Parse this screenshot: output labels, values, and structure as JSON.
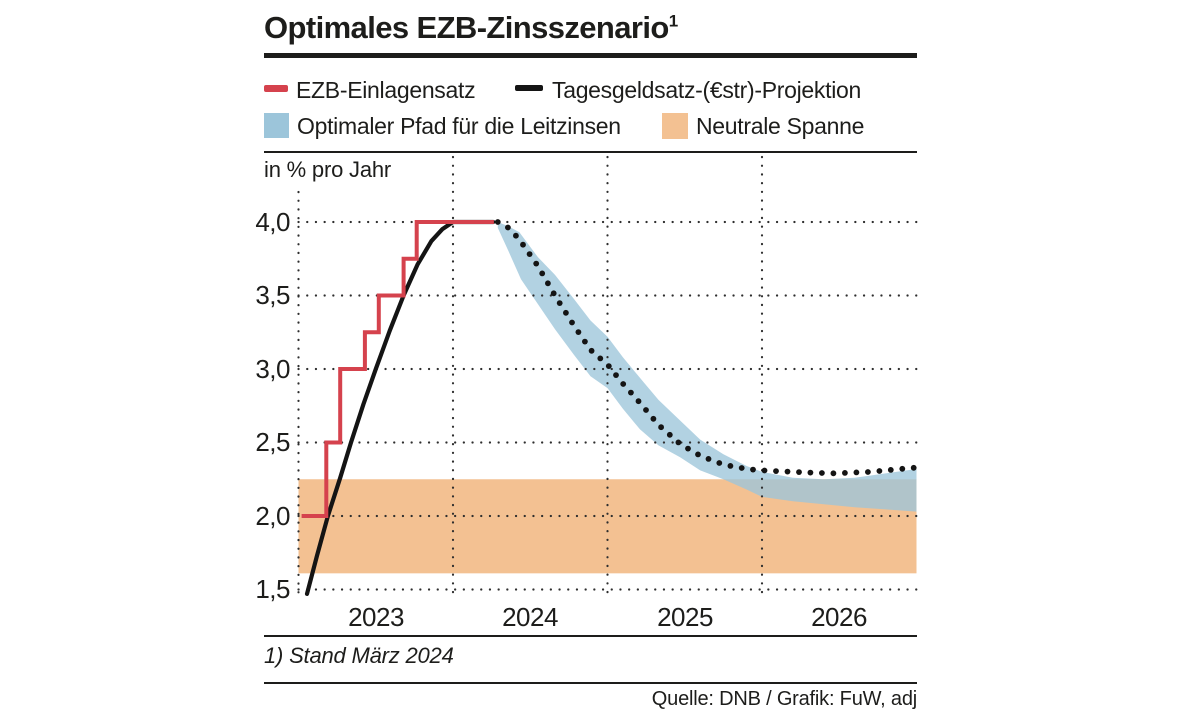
{
  "title": "Optimales EZB-Zinsszenario",
  "title_superscript": "1",
  "axis_note": "in % pro Jahr",
  "footnote": "1) Stand März 2024",
  "source": "Quelle: DNB / Grafik: FuW, adj",
  "colors": {
    "red": "#d5424d",
    "black_line": "#141414",
    "blue_band": "#9cc5da",
    "orange_band": "#f3c192",
    "grid_dot": "#2e2e2e",
    "text": "#1d1d1b"
  },
  "legend": [
    {
      "label": "EZB-Einlagensatz",
      "swatch": "dash",
      "color": "#d5424d"
    },
    {
      "label": "Tagesgeldsatz-(€str)-Projektion",
      "swatch": "dash",
      "color": "#141414"
    },
    {
      "label": "Optimaler Pfad für die Leitzinsen",
      "swatch": "square",
      "color": "#9cc5da"
    },
    {
      "label": "Neutrale Spanne",
      "swatch": "square",
      "color": "#f3c192"
    }
  ],
  "chart_data": {
    "type": "line",
    "title": "Optimales EZB-Zinsszenario (Stand März 2024)",
    "ylabel": "in % pro Jahr",
    "xlim": [
      2023.0,
      2027.0
    ],
    "ylim": [
      1.5,
      4.0
    ],
    "grid": {
      "style": "dotted",
      "h_values": [
        4.0,
        3.5,
        3.0,
        2.5,
        2.0,
        1.5
      ],
      "v_values": [
        2023.0,
        2024.0,
        2025.0,
        2026.0
      ]
    },
    "y_ticks": {
      "values": [
        4.0,
        3.5,
        3.0,
        2.5,
        2.0,
        1.5
      ],
      "labels": [
        "4,0",
        "3,5",
        "3,0",
        "2,5",
        "2,0",
        "1,5"
      ]
    },
    "x_ticks": {
      "values": [
        2023.5,
        2024.5,
        2025.5,
        2026.5
      ],
      "labels": [
        "2023",
        "2024",
        "2025",
        "2026"
      ]
    },
    "series": [
      {
        "name": "Neutrale Spanne",
        "type": "hband",
        "color": "#f3c192",
        "x": [
          2023.0,
          2027.0
        ],
        "range": [
          1.61,
          2.25
        ]
      },
      {
        "name": "Optimaler Pfad für die Leitzinsen",
        "type": "band",
        "color": "#9cc5da",
        "opacity": 0.78,
        "top": [
          [
            2024.29,
            4.0
          ],
          [
            2024.36,
            3.97
          ],
          [
            2024.43,
            3.93
          ],
          [
            2024.55,
            3.76
          ],
          [
            2024.66,
            3.64
          ],
          [
            2024.78,
            3.48
          ],
          [
            2024.89,
            3.33
          ],
          [
            2025.0,
            3.22
          ],
          [
            2025.1,
            3.08
          ],
          [
            2025.21,
            2.94
          ],
          [
            2025.33,
            2.79
          ],
          [
            2025.47,
            2.65
          ],
          [
            2025.6,
            2.52
          ],
          [
            2025.75,
            2.42
          ],
          [
            2025.9,
            2.34
          ],
          [
            2026.0,
            2.3
          ],
          [
            2026.2,
            2.26
          ],
          [
            2026.4,
            2.25
          ],
          [
            2026.6,
            2.26
          ],
          [
            2026.8,
            2.29
          ],
          [
            2027.0,
            2.32
          ]
        ],
        "bottom": [
          [
            2024.29,
            3.96
          ],
          [
            2024.36,
            3.8
          ],
          [
            2024.44,
            3.61
          ],
          [
            2024.55,
            3.44
          ],
          [
            2024.66,
            3.27
          ],
          [
            2024.78,
            3.1
          ],
          [
            2024.89,
            2.95
          ],
          [
            2025.0,
            2.87
          ],
          [
            2025.1,
            2.73
          ],
          [
            2025.21,
            2.59
          ],
          [
            2025.33,
            2.48
          ],
          [
            2025.47,
            2.4
          ],
          [
            2025.6,
            2.31
          ],
          [
            2025.75,
            2.25
          ],
          [
            2025.9,
            2.18
          ],
          [
            2026.0,
            2.13
          ],
          [
            2026.2,
            2.1
          ],
          [
            2026.4,
            2.08
          ],
          [
            2026.6,
            2.06
          ],
          [
            2026.8,
            2.045
          ],
          [
            2027.0,
            2.03
          ]
        ]
      },
      {
        "name": "Tagesgeldsatz (€str)",
        "type": "line",
        "color": "#141414",
        "width": 4.2,
        "points": [
          [
            2023.055,
            1.47
          ],
          [
            2023.12,
            1.73
          ],
          [
            2023.19,
            2.0
          ],
          [
            2023.27,
            2.26
          ],
          [
            2023.34,
            2.5
          ],
          [
            2023.42,
            2.76
          ],
          [
            2023.5,
            3.0
          ],
          [
            2023.59,
            3.26
          ],
          [
            2023.68,
            3.5
          ],
          [
            2023.77,
            3.71
          ],
          [
            2023.86,
            3.87
          ],
          [
            2023.93,
            3.95
          ],
          [
            2024.0,
            4.0
          ],
          [
            2024.26,
            4.0
          ]
        ]
      },
      {
        "name": "EZB-Einlagensatz",
        "type": "step",
        "color": "#d5424d",
        "width": 4,
        "points": [
          [
            2023.02,
            2.0
          ],
          [
            2023.18,
            2.0
          ],
          [
            2023.18,
            2.5
          ],
          [
            2023.27,
            2.5
          ],
          [
            2023.27,
            3.0
          ],
          [
            2023.43,
            3.0
          ],
          [
            2023.43,
            3.25
          ],
          [
            2023.52,
            3.25
          ],
          [
            2023.52,
            3.5
          ],
          [
            2023.68,
            3.5
          ],
          [
            2023.68,
            3.75
          ],
          [
            2023.765,
            3.75
          ],
          [
            2023.765,
            4.0
          ],
          [
            2024.265,
            4.0
          ]
        ]
      },
      {
        "name": "Tagesgeldsatz-(€str)-Projektion",
        "type": "dotted",
        "color": "#141414",
        "dot_radius": 2.9,
        "dot_spacing": 11.5,
        "points": [
          [
            2024.29,
            4.0
          ],
          [
            2024.36,
            3.96
          ],
          [
            2024.43,
            3.88
          ],
          [
            2024.55,
            3.7
          ],
          [
            2024.66,
            3.5
          ],
          [
            2024.78,
            3.3
          ],
          [
            2024.89,
            3.13
          ],
          [
            2025.0,
            3.03
          ],
          [
            2025.1,
            2.9
          ],
          [
            2025.21,
            2.77
          ],
          [
            2025.33,
            2.62
          ],
          [
            2025.47,
            2.49
          ],
          [
            2025.6,
            2.41
          ],
          [
            2025.75,
            2.35
          ],
          [
            2025.9,
            2.32
          ],
          [
            2026.0,
            2.31
          ],
          [
            2026.2,
            2.3
          ],
          [
            2026.45,
            2.29
          ],
          [
            2026.7,
            2.3
          ],
          [
            2026.85,
            2.315
          ],
          [
            2027.0,
            2.33
          ]
        ]
      }
    ]
  }
}
